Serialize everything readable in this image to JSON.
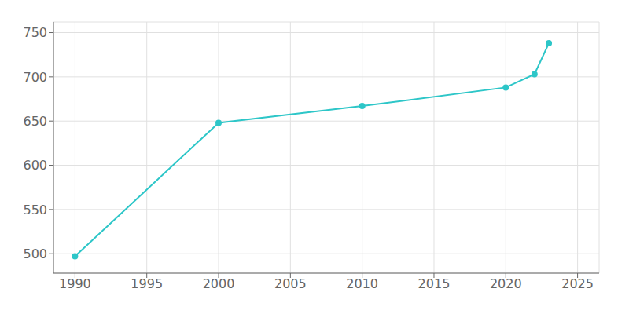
{
  "chart_data": {
    "type": "line",
    "x": [
      1990,
      2000,
      2010,
      2020,
      2022,
      2023
    ],
    "values": [
      497,
      648,
      667,
      688,
      703,
      738
    ],
    "color": "#2DC6C8",
    "marker": "circle",
    "xlim": [
      1988.5,
      2026.5
    ],
    "ylim": [
      478,
      762
    ],
    "xticks": [
      1990,
      1995,
      2000,
      2005,
      2010,
      2015,
      2020,
      2025
    ],
    "yticks": [
      500,
      550,
      600,
      650,
      700,
      750
    ],
    "grid": true
  }
}
